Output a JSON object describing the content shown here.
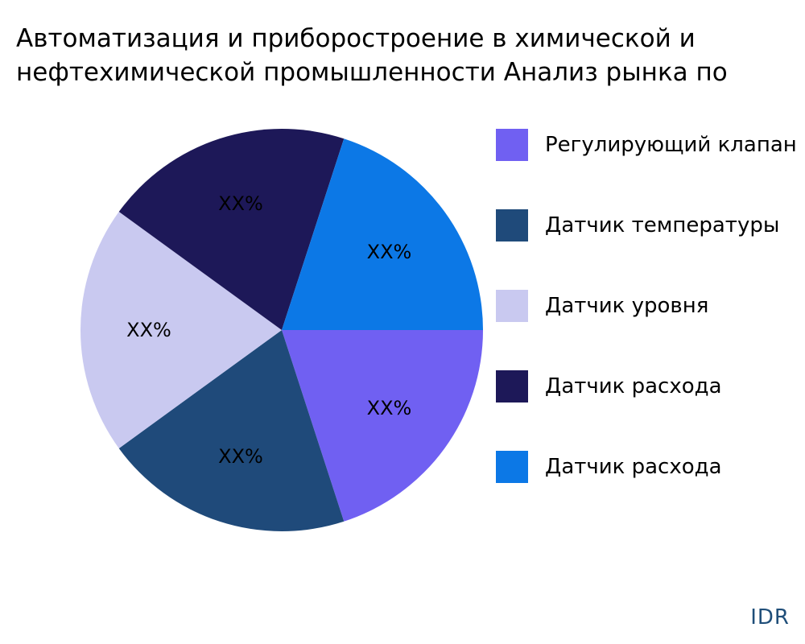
{
  "chart_data": {
    "type": "pie",
    "title_lines": [
      "Автоматизация и приборостроение в химической и",
      "нефтехимической промышленности Анализ рынка по"
    ],
    "slices": [
      {
        "label": "Регулирующий клапан",
        "value": 20,
        "display": "XX%",
        "color": "#7060f2"
      },
      {
        "label": "Датчик температуры",
        "value": 20,
        "display": "XX%",
        "color": "#1f4a7a"
      },
      {
        "label": "Датчик уровня",
        "value": 20,
        "display": "XX%",
        "color": "#c9c9f0"
      },
      {
        "label": "Датчик расхода",
        "value": 20,
        "display": "XX%",
        "color": "#1d1858"
      },
      {
        "label": "Датчик расхода",
        "value": 20,
        "display": "XX%",
        "color": "#0c78e6"
      }
    ],
    "direction": "clockwise",
    "start": "east",
    "legend_position": "right"
  },
  "watermark": "IDR"
}
